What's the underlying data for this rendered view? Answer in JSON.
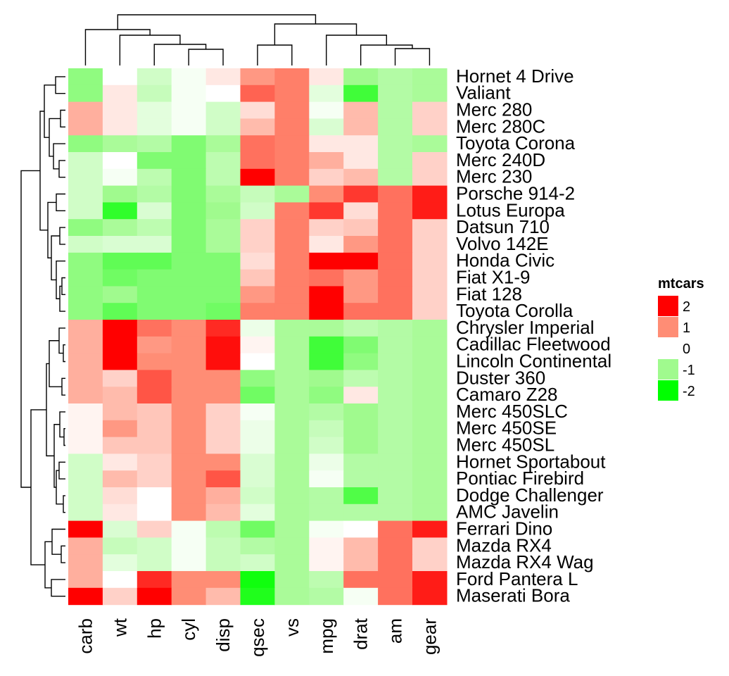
{
  "chart_data": {
    "type": "heatmap",
    "title": "",
    "legend": {
      "title": "mtcars",
      "position": "right",
      "entries": [
        {
          "label": "2",
          "value": 2,
          "color": "#ff0000"
        },
        {
          "label": "1",
          "value": 1,
          "color": "#ff8d75"
        },
        {
          "label": "0",
          "value": 0,
          "color": "#ffffff"
        },
        {
          "label": "-1",
          "value": -1,
          "color": "#a0fa8e"
        },
        {
          "label": "-2",
          "value": -2,
          "color": "#00ff00"
        }
      ]
    },
    "colors": {
      "high": "#ff0000",
      "mid": "#ffffff",
      "low": "#00ff00"
    },
    "columns": [
      "carb",
      "wt",
      "hp",
      "cyl",
      "disp",
      "qsec",
      "vs",
      "mpg",
      "drat",
      "am",
      "gear"
    ],
    "rows": [
      "Hornet 4 Drive",
      "Valiant",
      "Merc 280",
      "Merc 280C",
      "Toyota Corona",
      "Merc 240D",
      "Merc 230",
      "Porsche 914-2",
      "Lotus Europa",
      "Datsun 710",
      "Volvo 142E",
      "Honda Civic",
      "Fiat X1-9",
      "Fiat 128",
      "Toyota Corolla",
      "Chrysler Imperial",
      "Cadillac Fleetwood",
      "Lincoln Continental",
      "Duster 360",
      "Camaro Z28",
      "Merc 450SLC",
      "Merc 450SE",
      "Merc 450SL",
      "Hornet Sportabout",
      "Pontiac Firebird",
      "Dodge Challenger",
      "AMC Javelin",
      "Ferrari Dino",
      "Mazda RX4",
      "Mazda RX4 Wag",
      "Ford Pantera L",
      "Maserati Bora"
    ],
    "values": [
      [
        -1.1,
        0.0,
        -0.5,
        -0.1,
        0.2,
        0.9,
        1.1,
        0.2,
        -1.0,
        -0.8,
        -0.9
      ],
      [
        -1.1,
        0.2,
        -0.6,
        -0.1,
        0.0,
        1.3,
        1.1,
        -0.3,
        -1.6,
        -0.8,
        -0.9
      ],
      [
        0.7,
        0.2,
        -0.3,
        -0.1,
        -0.5,
        0.3,
        1.1,
        -0.1,
        0.6,
        -0.8,
        0.4
      ],
      [
        0.7,
        0.2,
        -0.3,
        -0.1,
        -0.5,
        0.6,
        1.1,
        -0.4,
        0.6,
        -0.8,
        0.4
      ],
      [
        -1.1,
        -0.9,
        -0.8,
        -1.2,
        -0.9,
        1.2,
        1.1,
        0.2,
        0.2,
        -0.8,
        -0.9
      ],
      [
        -0.5,
        -0.0,
        -1.2,
        -1.2,
        -0.7,
        1.2,
        1.1,
        0.7,
        0.2,
        -0.8,
        0.4
      ],
      [
        -0.5,
        -0.1,
        -0.7,
        -1.2,
        -0.7,
        2.8,
        1.1,
        0.4,
        0.6,
        -0.8,
        0.4
      ],
      [
        -0.5,
        -1.0,
        -0.8,
        -1.2,
        -0.9,
        -0.6,
        -0.9,
        1.0,
        1.6,
        1.2,
        1.8
      ],
      [
        -0.5,
        -1.7,
        -0.4,
        -1.2,
        -1.0,
        -0.5,
        1.1,
        1.6,
        0.3,
        1.2,
        1.8
      ],
      [
        -1.1,
        -0.9,
        -0.7,
        -1.2,
        -0.9,
        0.4,
        1.1,
        0.4,
        0.5,
        1.2,
        0.4
      ],
      [
        -0.5,
        -0.4,
        -0.4,
        -1.2,
        -0.9,
        0.4,
        1.1,
        0.2,
        0.9,
        1.2,
        0.4
      ],
      [
        -1.1,
        -1.4,
        -1.4,
        -1.2,
        -1.2,
        0.3,
        1.1,
        2.0,
        2.5,
        1.2,
        0.4
      ],
      [
        -1.1,
        -1.3,
        -1.2,
        -1.2,
        -1.2,
        0.5,
        1.1,
        1.2,
        0.9,
        1.2,
        0.4
      ],
      [
        -1.1,
        -1.0,
        -1.2,
        -1.2,
        -1.2,
        0.9,
        1.1,
        2.0,
        0.9,
        1.2,
        0.4
      ],
      [
        -1.1,
        -1.4,
        -1.2,
        -1.2,
        -1.3,
        1.1,
        1.1,
        2.3,
        1.2,
        1.2,
        0.4
      ],
      [
        0.7,
        2.2,
        1.2,
        1.0,
        1.7,
        -0.2,
        -0.9,
        -0.9,
        -0.7,
        -0.8,
        -0.9
      ],
      [
        0.7,
        2.1,
        0.9,
        1.0,
        1.9,
        0.1,
        -0.9,
        -1.6,
        -1.2,
        -0.8,
        -0.9
      ],
      [
        0.7,
        2.3,
        1.0,
        1.0,
        1.9,
        0.0,
        -0.9,
        -1.6,
        -1.1,
        -0.8,
        -0.9
      ],
      [
        0.7,
        0.4,
        1.4,
        1.0,
        1.0,
        -1.1,
        -0.9,
        -1.0,
        -0.7,
        -0.8,
        -0.9
      ],
      [
        0.7,
        0.6,
        1.4,
        1.0,
        1.0,
        -1.3,
        -0.9,
        -1.1,
        0.2,
        -0.8,
        -0.9
      ],
      [
        0.1,
        0.6,
        0.5,
        1.0,
        0.4,
        -0.1,
        -0.9,
        -0.8,
        -1.0,
        -0.8,
        -0.9
      ],
      [
        0.1,
        0.9,
        0.5,
        1.0,
        0.4,
        -0.2,
        -0.9,
        -0.6,
        -1.0,
        -0.8,
        -0.9
      ],
      [
        0.1,
        0.5,
        0.5,
        1.0,
        0.4,
        -0.2,
        -0.9,
        -0.5,
        -1.0,
        -0.8,
        -0.9
      ],
      [
        -0.5,
        0.2,
        0.4,
        1.0,
        1.0,
        -0.4,
        -0.9,
        -0.2,
        -0.8,
        -0.8,
        -0.9
      ],
      [
        -0.5,
        0.6,
        0.4,
        1.0,
        1.4,
        -0.4,
        -0.9,
        -0.1,
        -0.8,
        -0.8,
        -0.9
      ],
      [
        -0.5,
        0.3,
        0.0,
        1.0,
        0.7,
        -0.5,
        -0.9,
        -0.8,
        -1.5,
        -0.8,
        -0.9
      ],
      [
        -0.5,
        0.2,
        0.0,
        1.0,
        0.6,
        -0.3,
        -0.9,
        -0.8,
        -0.8,
        -0.8,
        -0.9
      ],
      [
        2.0,
        -0.4,
        0.4,
        -0.1,
        -0.7,
        -1.3,
        -0.9,
        -0.1,
        0.0,
        1.2,
        1.8
      ],
      [
        0.7,
        -0.6,
        -0.5,
        -0.1,
        -0.6,
        -0.8,
        -0.9,
        0.1,
        0.6,
        1.2,
        0.4
      ],
      [
        0.7,
        -0.3,
        -0.5,
        -0.1,
        -0.6,
        -0.5,
        -0.9,
        0.1,
        0.6,
        1.2,
        0.4
      ],
      [
        0.7,
        0.0,
        1.7,
        1.0,
        1.0,
        -1.9,
        -0.9,
        -0.7,
        1.2,
        1.2,
        1.8
      ],
      [
        3.2,
        0.4,
        2.7,
        1.0,
        0.6,
        -1.8,
        -0.9,
        -0.8,
        -0.1,
        1.2,
        1.8
      ]
    ]
  }
}
